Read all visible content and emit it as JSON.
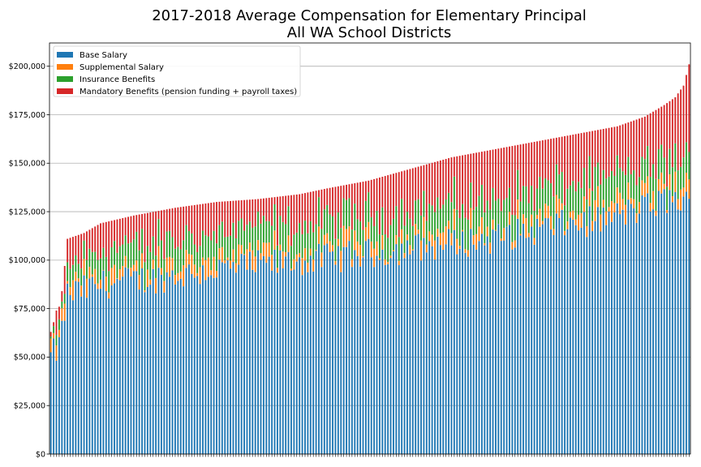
{
  "chart_data": {
    "type": "bar",
    "stacked": true,
    "title": [
      "2017-2018 Average Compensation for Elementary Principal",
      "All WA School Districts"
    ],
    "xlabel": "",
    "ylabel": "",
    "ylim": [
      0,
      212000
    ],
    "yticks": [
      0,
      25000,
      50000,
      75000,
      100000,
      125000,
      150000,
      175000,
      200000
    ],
    "ytick_labels": [
      "$0",
      "$25,000",
      "$50,000",
      "$75,000",
      "$100,000",
      "$125,000",
      "$150,000",
      "$175,000",
      "$200,000"
    ],
    "grid": "horizontal",
    "legend_position": "top-left",
    "x_note": "one bar per school district (district names not shown); sorted by total compensation",
    "series": [
      {
        "name": "Base Salary",
        "color": "#1f77b4"
      },
      {
        "name": "Supplemental Salary",
        "color": "#ff7f0e"
      },
      {
        "name": "Insurance Benefits",
        "color": "#2ca02c"
      },
      {
        "name": "Mandatory Benefits (pension funding + payroll taxes)",
        "color": "#d62728"
      }
    ],
    "n_bars": 232,
    "totals_anchors": [
      [
        0,
        63000
      ],
      [
        1,
        68000
      ],
      [
        2,
        74000
      ],
      [
        3,
        76000
      ],
      [
        4,
        84000
      ],
      [
        5,
        97000
      ],
      [
        6,
        111000
      ],
      [
        12,
        114000
      ],
      [
        18,
        119000
      ],
      [
        30,
        123000
      ],
      [
        45,
        127000
      ],
      [
        60,
        130000
      ],
      [
        75,
        131500
      ],
      [
        90,
        134000
      ],
      [
        100,
        137000
      ],
      [
        115,
        141000
      ],
      [
        130,
        147000
      ],
      [
        145,
        153000
      ],
      [
        160,
        157000
      ],
      [
        175,
        161000
      ],
      [
        190,
        165000
      ],
      [
        205,
        169000
      ],
      [
        215,
        174000
      ],
      [
        222,
        180000
      ],
      [
        226,
        184000
      ],
      [
        229,
        190000
      ],
      [
        231,
        201000
      ]
    ],
    "base_anchors": [
      [
        0,
        50000
      ],
      [
        3,
        55000
      ],
      [
        6,
        82000
      ],
      [
        20,
        88000
      ],
      [
        40,
        91000
      ],
      [
        60,
        95000
      ],
      [
        80,
        98000
      ],
      [
        100,
        101000
      ],
      [
        120,
        104000
      ],
      [
        140,
        108000
      ],
      [
        160,
        111000
      ],
      [
        180,
        117000
      ],
      [
        200,
        121000
      ],
      [
        215,
        127000
      ],
      [
        225,
        132000
      ],
      [
        231,
        128000
      ]
    ],
    "insurance_anchors": [
      [
        0,
        2000
      ],
      [
        4,
        5000
      ],
      [
        6,
        8000
      ],
      [
        20,
        12000
      ],
      [
        60,
        13000
      ],
      [
        120,
        14000
      ],
      [
        180,
        15000
      ],
      [
        231,
        14000
      ]
    ],
    "supplemental_range": [
      0,
      16000
    ]
  }
}
